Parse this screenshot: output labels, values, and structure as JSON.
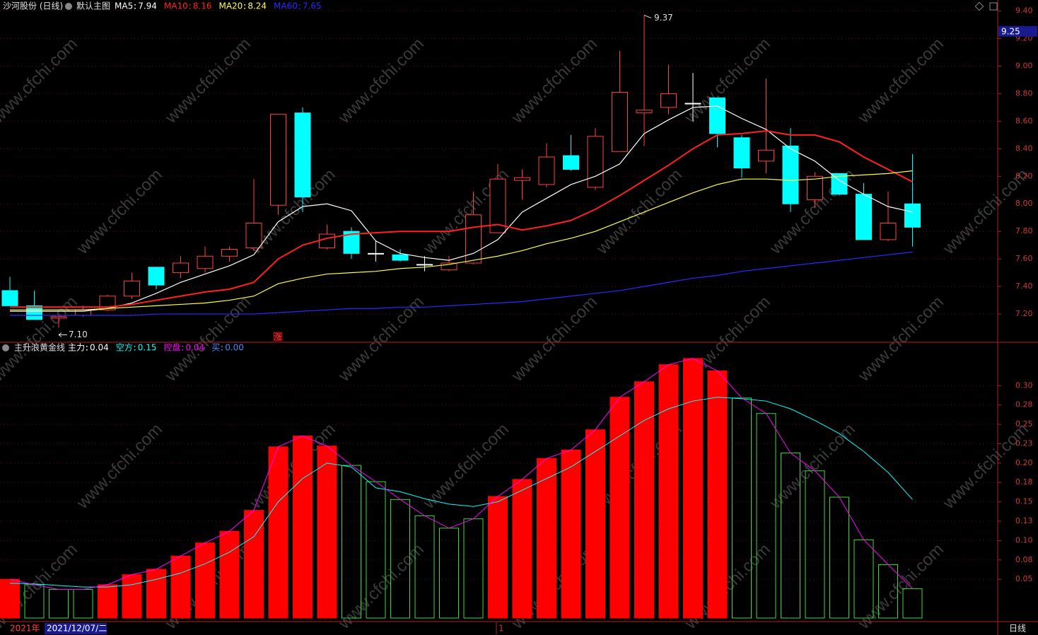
{
  "header": {
    "stock": "沙河股份 (日线)",
    "main_chart": "默认主图",
    "watermark": "www.cfchi.com",
    "year": "2021年",
    "cursor_date": "2021/12/07/二",
    "month_mark": "1",
    "period": "日线",
    "signal": "涨"
  },
  "chart_data": [
    {
      "type": "candlestick",
      "ylim": [
        7.0,
        9.48
      ],
      "yticks": [
        {
          "value": 7.2,
          "label": "7.20"
        },
        {
          "value": 7.4,
          "label": "7.40"
        },
        {
          "value": 7.6,
          "label": "7.60"
        },
        {
          "value": 7.8,
          "label": "7.80"
        },
        {
          "value": 8.0,
          "label": "8.00"
        },
        {
          "value": 8.2,
          "label": "8.20"
        },
        {
          "value": 8.4,
          "label": "8.40"
        },
        {
          "value": 8.6,
          "label": "8.60"
        },
        {
          "value": 8.8,
          "label": "8.80"
        },
        {
          "value": 9.0,
          "label": "9.00"
        },
        {
          "value": 9.2,
          "label": "9.20"
        },
        {
          "value": 9.4,
          "label": "9.40"
        }
      ],
      "grid": true,
      "up_color": "#ff4040",
      "down_color": "#00ffff",
      "flat_color": "#ffffff",
      "open": [
        7.37,
        7.26,
        7.17,
        7.19,
        7.23,
        7.33,
        7.54,
        7.5,
        7.53,
        7.62,
        7.68,
        7.99,
        8.66,
        7.68,
        7.8,
        7.64,
        7.63,
        7.56,
        7.52,
        7.57,
        7.79,
        8.17,
        8.14,
        8.35,
        8.12,
        8.38,
        8.66,
        8.7,
        8.73,
        8.77,
        8.48,
        8.31,
        8.42,
        8.03,
        8.22,
        8.07,
        7.74,
        8.0
      ],
      "high": [
        7.47,
        7.37,
        7.19,
        7.26,
        7.34,
        7.5,
        7.54,
        7.62,
        7.69,
        7.69,
        8.18,
        8.65,
        8.7,
        7.85,
        7.83,
        7.73,
        7.67,
        7.62,
        7.62,
        8.09,
        8.29,
        8.25,
        8.44,
        8.5,
        8.55,
        9.11,
        9.37,
        9.01,
        8.95,
        8.77,
        8.5,
        8.91,
        8.55,
        8.23,
        8.22,
        8.15,
        8.09,
        8.36
      ],
      "low": [
        7.26,
        7.16,
        7.1,
        7.18,
        7.22,
        7.31,
        7.38,
        7.46,
        7.5,
        7.58,
        7.66,
        7.92,
        7.94,
        7.67,
        7.6,
        7.58,
        7.58,
        7.51,
        7.51,
        7.56,
        7.79,
        8.03,
        8.12,
        8.24,
        8.1,
        8.38,
        8.42,
        8.65,
        8.6,
        8.41,
        8.19,
        8.22,
        7.94,
        7.97,
        8.06,
        7.74,
        7.73,
        7.69
      ],
      "close": [
        7.26,
        7.16,
        7.18,
        7.23,
        7.33,
        7.44,
        7.41,
        7.57,
        7.62,
        7.67,
        7.86,
        8.65,
        8.05,
        7.78,
        7.64,
        7.64,
        7.59,
        7.56,
        7.57,
        7.92,
        8.18,
        8.19,
        8.34,
        8.25,
        8.49,
        8.81,
        8.68,
        8.8,
        8.73,
        8.51,
        8.26,
        8.39,
        8.0,
        8.2,
        8.07,
        7.74,
        7.86,
        7.83
      ],
      "series": [
        {
          "name": "MA5",
          "color": "#ffffff",
          "last": 7.94,
          "values": [
            7.22,
            7.22,
            7.22,
            7.22,
            7.24,
            7.28,
            7.35,
            7.43,
            7.49,
            7.55,
            7.63,
            7.87,
            7.98,
            8.0,
            7.95,
            7.73,
            7.64,
            7.61,
            7.59,
            7.64,
            7.74,
            7.94,
            8.04,
            8.14,
            8.2,
            8.29,
            8.51,
            8.61,
            8.7,
            8.71,
            8.62,
            8.54,
            8.4,
            8.31,
            8.17,
            8.07,
            7.98,
            7.94
          ]
        },
        {
          "name": "MA10",
          "color": "#ff2020",
          "last": 8.16,
          "values": [
            7.25,
            7.25,
            7.25,
            7.25,
            7.25,
            7.27,
            7.3,
            7.33,
            7.36,
            7.38,
            7.43,
            7.6,
            7.7,
            7.75,
            7.78,
            7.79,
            7.8,
            7.8,
            7.8,
            7.83,
            7.85,
            7.81,
            7.84,
            7.88,
            7.96,
            8.06,
            8.17,
            8.28,
            8.4,
            8.5,
            8.51,
            8.53,
            8.5,
            8.5,
            8.45,
            8.34,
            8.25,
            8.16
          ]
        },
        {
          "name": "MA20",
          "color": "#ffff40",
          "last": 8.24,
          "values": [
            7.23,
            7.23,
            7.23,
            7.23,
            7.24,
            7.25,
            7.26,
            7.27,
            7.28,
            7.3,
            7.33,
            7.42,
            7.46,
            7.49,
            7.5,
            7.51,
            7.53,
            7.54,
            7.56,
            7.59,
            7.62,
            7.66,
            7.71,
            7.75,
            7.8,
            7.87,
            7.94,
            8.01,
            8.08,
            8.14,
            8.18,
            8.18,
            8.17,
            8.18,
            8.2,
            8.21,
            8.22,
            8.24
          ]
        },
        {
          "name": "MA60",
          "color": "#2a2aff",
          "last": 7.65,
          "values": [
            7.19,
            7.19,
            7.19,
            7.19,
            7.19,
            7.19,
            7.2,
            7.2,
            7.2,
            7.2,
            7.2,
            7.21,
            7.22,
            7.23,
            7.24,
            7.24,
            7.25,
            7.25,
            7.26,
            7.27,
            7.28,
            7.29,
            7.31,
            7.33,
            7.35,
            7.37,
            7.4,
            7.43,
            7.46,
            7.48,
            7.51,
            7.53,
            7.55,
            7.57,
            7.59,
            7.61,
            7.63,
            7.65
          ]
        }
      ],
      "max_label": 9.37,
      "min_label": {
        "value": 7.1,
        "label": "7.10"
      },
      "cursor_price": 9.25
    },
    {
      "type": "bar",
      "title": "主升浪黄金线",
      "ylim": [
        0,
        0.355
      ],
      "yticks": [
        0.05,
        {
          "value": 0.075,
          "label": "0.08"
        },
        {
          "value": 0.1,
          "label": "0.10"
        },
        {
          "value": 0.125,
          "label": "0.13"
        },
        0.15,
        {
          "value": 0.175,
          "label": "0.18"
        },
        {
          "value": 0.2,
          "label": "0.20"
        },
        {
          "value": 0.225,
          "label": "0.23"
        },
        0.25,
        {
          "value": 0.275,
          "label": "0.28"
        },
        {
          "value": 0.3,
          "label": "0.30"
        }
      ],
      "bars": {
        "name": "主力",
        "color": "#ffffff",
        "last": 0.04,
        "values": [
          0.05,
          0.043,
          0.037,
          0.037,
          0.043,
          0.056,
          0.063,
          0.08,
          0.097,
          0.112,
          0.139,
          0.221,
          0.235,
          0.222,
          0.197,
          0.176,
          0.153,
          0.132,
          0.116,
          0.128,
          0.157,
          0.179,
          0.206,
          0.217,
          0.243,
          0.285,
          0.305,
          0.327,
          0.335,
          0.319,
          0.284,
          0.264,
          0.213,
          0.19,
          0.156,
          0.101,
          0.069,
          0.038
        ],
        "colors": [
          "#ff0000",
          "#33dd33",
          "#33dd33",
          "#33dd33",
          "#ff0000",
          "#ff0000",
          "#ff0000",
          "#ff0000",
          "#ff0000",
          "#ff0000",
          "#ff0000",
          "#ff0000",
          "#ff0000",
          "#ff0000",
          "#33dd33",
          "#33dd33",
          "#33dd33",
          "#33dd33",
          "#33dd33",
          "#33dd33",
          "#ff0000",
          "#ff0000",
          "#ff0000",
          "#ff0000",
          "#ff0000",
          "#ff0000",
          "#ff0000",
          "#ff0000",
          "#ff0000",
          "#ff0000",
          "#33dd33",
          "#33dd33",
          "#33dd33",
          "#33dd33",
          "#33dd33",
          "#33dd33",
          "#33dd33",
          "#33dd33"
        ]
      },
      "series": [
        {
          "name": "空方",
          "color": "#00ffff",
          "last": 0.15,
          "values": [
            0.045,
            0.044,
            0.042,
            0.04,
            0.04,
            0.043,
            0.05,
            0.058,
            0.07,
            0.085,
            0.105,
            0.15,
            0.18,
            0.2,
            0.195,
            0.168,
            0.163,
            0.154,
            0.147,
            0.144,
            0.15,
            0.165,
            0.18,
            0.195,
            0.215,
            0.235,
            0.255,
            0.27,
            0.28,
            0.285,
            0.283,
            0.28,
            0.27,
            0.255,
            0.238,
            0.215,
            0.188,
            0.153
          ]
        },
        {
          "name": "控盘",
          "color": "#ff00ff",
          "last": 0.04,
          "values": [
            0.05,
            0.043,
            0.037,
            0.037,
            0.043,
            0.056,
            0.063,
            0.08,
            0.097,
            0.112,
            0.139,
            0.221,
            0.235,
            0.222,
            0.197,
            0.176,
            0.153,
            0.132,
            0.116,
            0.128,
            0.157,
            0.179,
            0.206,
            0.217,
            0.243,
            0.285,
            0.305,
            0.327,
            0.335,
            0.319,
            0.284,
            0.264,
            0.213,
            0.19,
            0.156,
            0.101,
            0.069,
            0.038
          ]
        },
        {
          "name": "买",
          "color": "#3c8cff",
          "last": {
            "value": 0,
            "label": "0.00"
          }
        }
      ]
    }
  ]
}
